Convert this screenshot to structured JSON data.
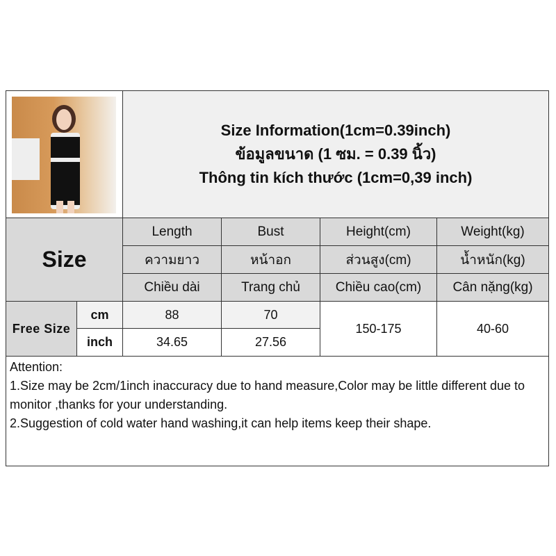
{
  "title": {
    "line1": "Size Information(1cm=0.39inch)",
    "line2": "ข้อมูลขนาด (1 ซม. = 0.39 นิ้ว)",
    "line3": "Thông tin kích thước (1cm=0,39 inch)"
  },
  "size_label": "Size",
  "columns": [
    {
      "en": "Length",
      "th": "ความยาว",
      "vi": "Chiều dài"
    },
    {
      "en": "Bust",
      "th": "หน้าอก",
      "vi": "Trang chủ"
    },
    {
      "en": "Height(cm)",
      "th": "ส่วนสูง(cm)",
      "vi": "Chiều cao(cm)"
    },
    {
      "en": "Weight(kg)",
      "th": "น้ำหนัก(kg)",
      "vi": "Cân nặng(kg)"
    }
  ],
  "row": {
    "name": "Free Size",
    "unit_cm": "cm",
    "unit_inch": "inch",
    "length_cm": "88",
    "bust_cm": "70",
    "length_inch": "34.65",
    "bust_inch": "27.56",
    "height": "150-175",
    "weight": "40-60"
  },
  "attention": {
    "heading": "Attention:",
    "line1": "1.Size may be 2cm/1inch inaccuracy due to hand measure,Color may be little different due to monitor ,thanks for your understanding.",
    "line2": "2.Suggestion of cold water hand washing,it can help items keep their shape."
  }
}
